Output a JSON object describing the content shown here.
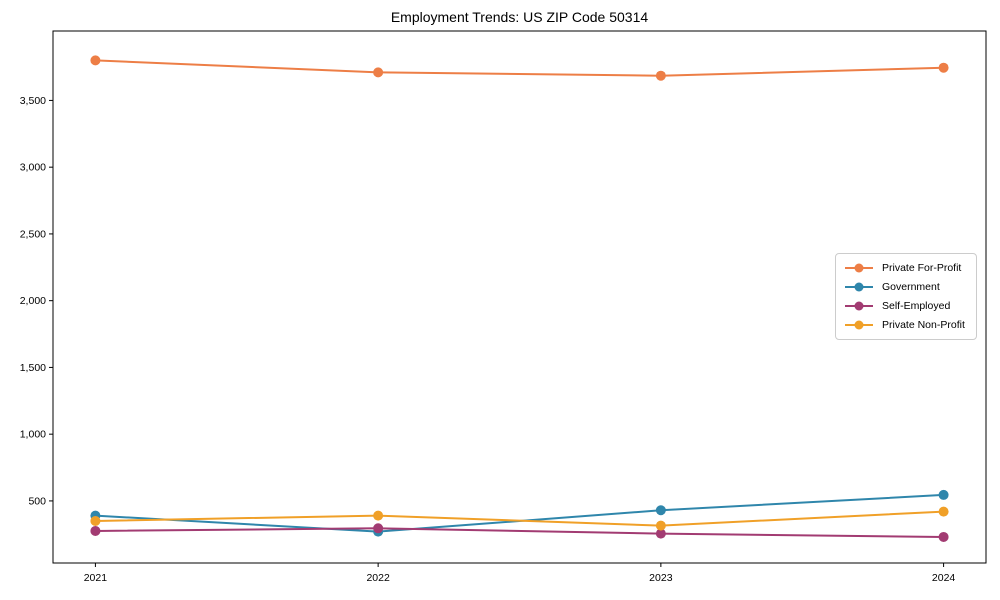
{
  "page": {
    "background": "#ffffff",
    "text_color": "#000000",
    "spine_color": "#000000"
  },
  "chart_data": {
    "type": "line",
    "title": "Employment Trends: US ZIP Code 50314",
    "xlabel": "",
    "ylabel": "",
    "x": [
      2021,
      2022,
      2023,
      2024
    ],
    "xticks": [
      "2021",
      "2022",
      "2023",
      "2024"
    ],
    "yticks": [
      500,
      1000,
      1500,
      2000,
      2500,
      3000,
      3500
    ],
    "ytick_labels": [
      "500",
      "1,000",
      "1,500",
      "2,000",
      "2,500",
      "3,000",
      "3,500"
    ],
    "xlim": [
      2020.85,
      2024.15
    ],
    "ylim": [
      35,
      4020
    ],
    "grid": false,
    "legend_position": "center-right",
    "marker": "circle",
    "line_width": 2,
    "series": [
      {
        "name": "Private For-Profit",
        "color": "#ED7E46",
        "values": [
          3800,
          3710,
          3685,
          3745
        ]
      },
      {
        "name": "Government",
        "color": "#2F86AB",
        "values": [
          390,
          270,
          430,
          545
        ]
      },
      {
        "name": "Self-Employed",
        "color": "#A23B72",
        "values": [
          275,
          295,
          255,
          230
        ]
      },
      {
        "name": "Private Non-Profit",
        "color": "#F0A028",
        "values": [
          350,
          390,
          315,
          420
        ]
      }
    ]
  }
}
